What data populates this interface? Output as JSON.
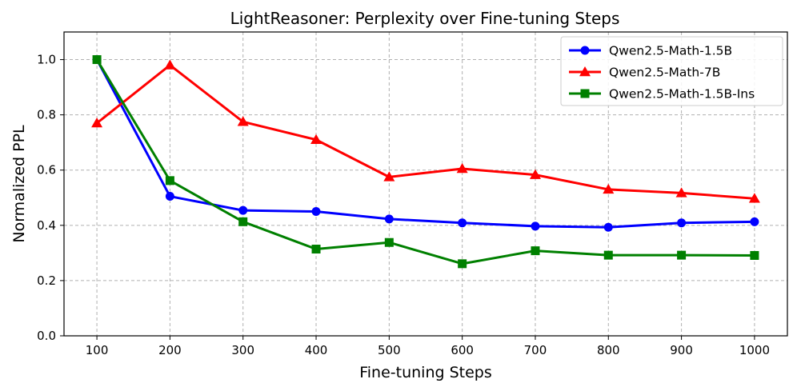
{
  "chart_data": {
    "type": "line",
    "title": "LightReasoner: Perplexity over Fine-tuning Steps",
    "xlabel": "Fine-tuning Steps",
    "ylabel": "Normalized PPL",
    "x": [
      100,
      200,
      300,
      400,
      500,
      600,
      700,
      800,
      900,
      1000
    ],
    "x_ticks": [
      "100",
      "200",
      "300",
      "400",
      "500",
      "600",
      "700",
      "800",
      "900",
      "1000"
    ],
    "xlim": [
      55,
      1045
    ],
    "ylim": [
      0,
      1.1
    ],
    "y_ticks": [
      "0.0",
      "0.2",
      "0.4",
      "0.6",
      "0.8",
      "1.0"
    ],
    "y_tick_values": [
      0,
      0.2,
      0.4,
      0.6,
      0.8,
      1.0
    ],
    "grid": true,
    "legend_position": "top-right",
    "series": [
      {
        "name": "Qwen2.5-Math-1.5B",
        "color": "#0000ff",
        "marker": "circle",
        "values": [
          1.0,
          0.505,
          0.454,
          0.45,
          0.423,
          0.409,
          0.397,
          0.393,
          0.409,
          0.413
        ]
      },
      {
        "name": "Qwen2.5-Math-7B",
        "color": "#ff0000",
        "marker": "triangle",
        "values": [
          0.77,
          0.98,
          0.775,
          0.71,
          0.575,
          0.605,
          0.583,
          0.53,
          0.517,
          0.497
        ]
      },
      {
        "name": "Qwen2.5-Math-1.5B-Ins",
        "color": "#008000",
        "marker": "square",
        "values": [
          1.0,
          0.562,
          0.413,
          0.314,
          0.338,
          0.261,
          0.308,
          0.292,
          0.292,
          0.291
        ]
      }
    ]
  }
}
